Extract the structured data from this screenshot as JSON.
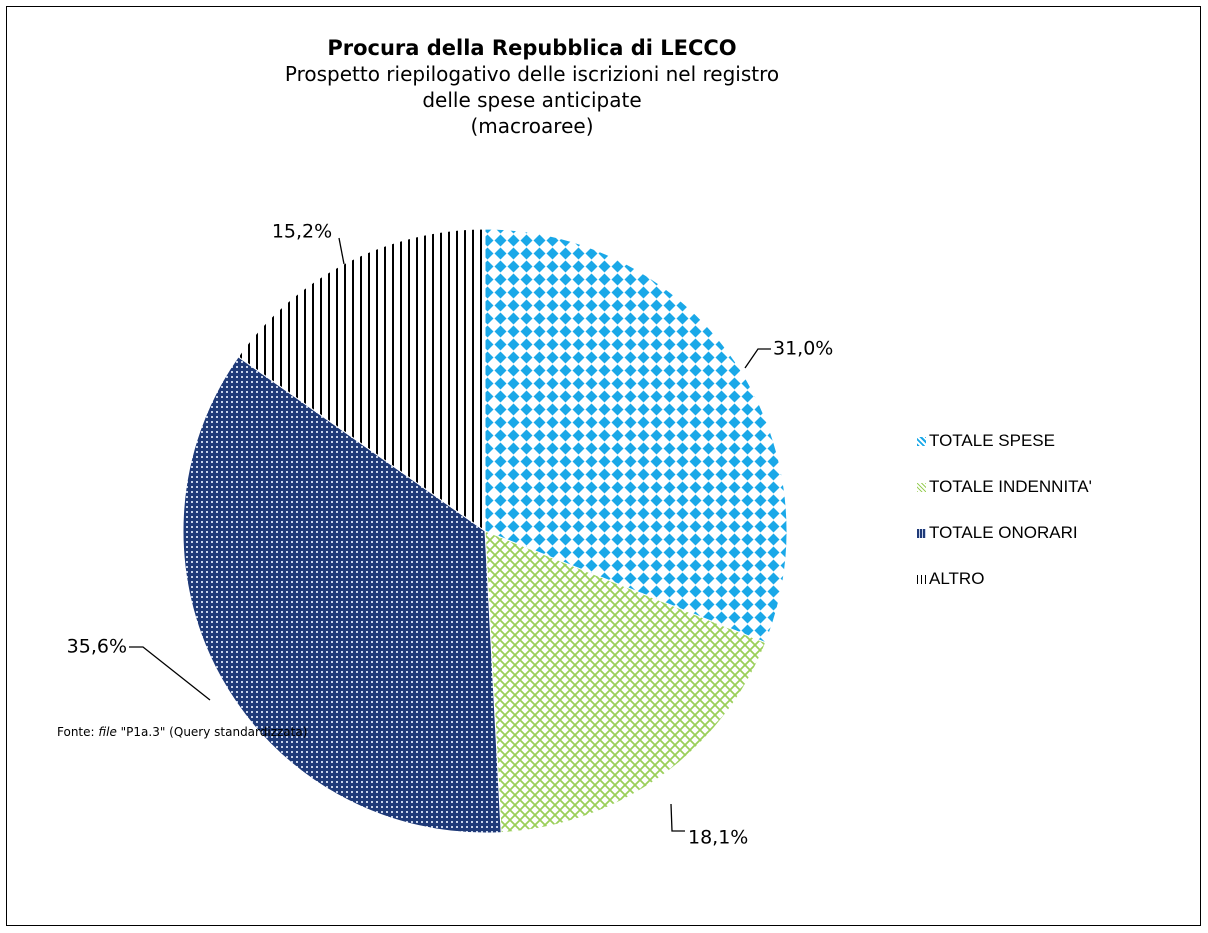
{
  "chart_data": {
    "type": "pie",
    "title": "Procura della Repubblica di LECCO",
    "subtitle": "Prospetto riepilogativo delle iscrizioni nel registro\ndelle spese anticipate\n(macroaree)",
    "slices": [
      {
        "name": "TOTALE SPESE",
        "value": 31.0,
        "label": "31,0%",
        "color": "#1aa8e8",
        "pattern": "diamond-dots"
      },
      {
        "name": "TOTALE INDENNITA'",
        "value": 18.1,
        "label": "18,1%",
        "color": "#9bcf5a",
        "pattern": "diagonal-grid"
      },
      {
        "name": "TOTALE ONORARI",
        "value": 35.6,
        "label": "35,6%",
        "color": "#1f3a78",
        "pattern": "dense-grid"
      },
      {
        "name": "ALTRO",
        "value": 15.2,
        "label": "15,2%",
        "color": "#000000",
        "pattern": "vertical-lines"
      }
    ],
    "legend_position": "right"
  },
  "source": {
    "prefix": "Fonte: ",
    "file_word": "file",
    "rest": " \"P1a.3\" (Query standardizzata)"
  }
}
